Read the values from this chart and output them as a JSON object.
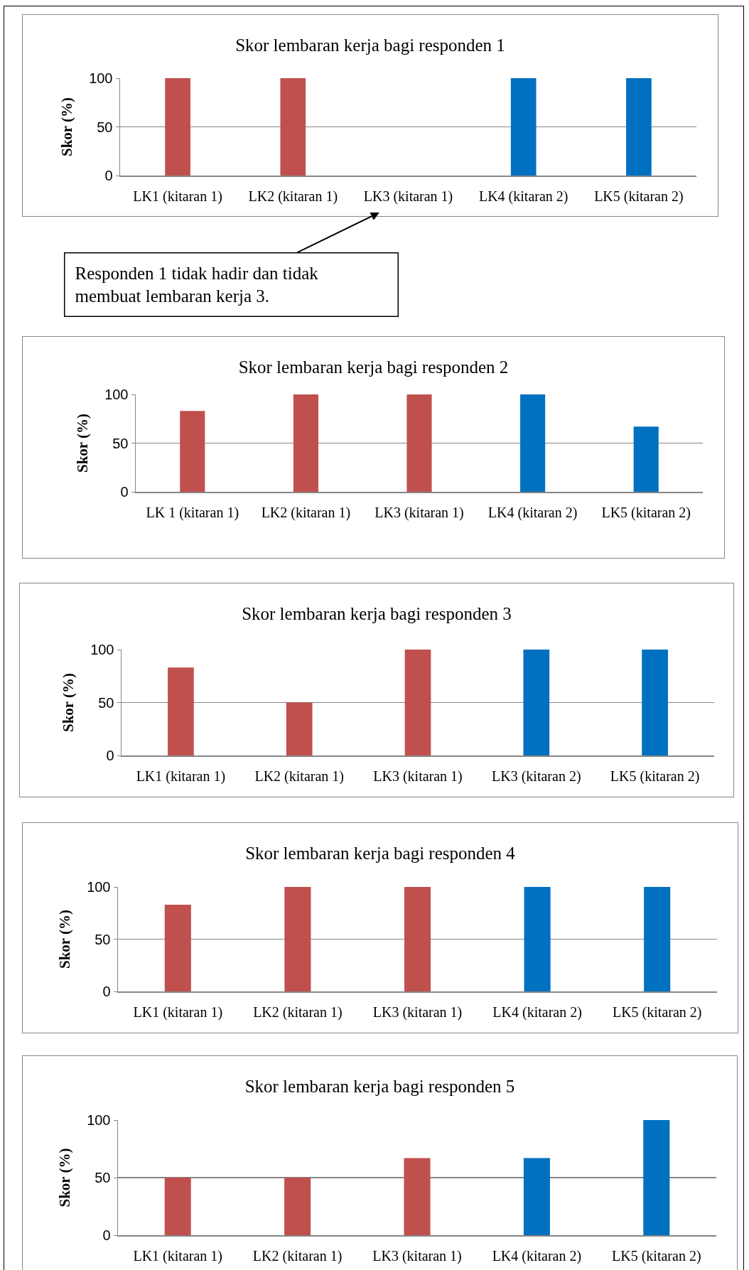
{
  "chart_data": [
    {
      "type": "bar",
      "title": "Skor lembaran kerja bagi responden 1",
      "ylabel": "Skor (%)",
      "categories": [
        "LK1 (kitaran 1)",
        "LK2 (kitaran 1)",
        "LK3 (kitaran 1)",
        "LK4 (kitaran 2)",
        "LK5 (kitaran 2)"
      ],
      "values": [
        100,
        100,
        null,
        100,
        100
      ],
      "colors": [
        "#c0504d",
        "#c0504d",
        "#c0504d",
        "#0070c0",
        "#0070c0"
      ],
      "ylim": [
        0,
        100
      ],
      "yticks": [
        0,
        50,
        100
      ],
      "grid": "y",
      "annotations": [
        "Responden 1 tidak hadir dan tidak\nmembuat lembaran kerja 3."
      ]
    },
    {
      "type": "bar",
      "title": "Skor lembaran kerja bagi responden 2",
      "ylabel": "Skor (%)",
      "categories": [
        "LK 1 (kitaran 1)",
        "LK2 (kitaran 1)",
        "LK3 (kitaran 1)",
        "LK4 (kitaran 2)",
        "LK5 (kitaran 2)"
      ],
      "values": [
        83,
        100,
        100,
        100,
        67
      ],
      "colors": [
        "#c0504d",
        "#c0504d",
        "#c0504d",
        "#0070c0",
        "#0070c0"
      ],
      "ylim": [
        0,
        100
      ],
      "yticks": [
        0,
        50,
        100
      ],
      "grid": "y"
    },
    {
      "type": "bar",
      "title": "Skor lembaran kerja bagi responden 3",
      "ylabel": "Skor (%)",
      "categories": [
        "LK1 (kitaran 1)",
        "LK2 (kitaran 1)",
        "LK3 (kitaran 1)",
        "LK3 (kitaran 2)",
        "LK5 (kitaran 2)"
      ],
      "values": [
        83,
        50,
        100,
        100,
        100
      ],
      "colors": [
        "#c0504d",
        "#c0504d",
        "#c0504d",
        "#0070c0",
        "#0070c0"
      ],
      "ylim": [
        0,
        100
      ],
      "yticks": [
        0,
        50,
        100
      ],
      "grid": "y"
    },
    {
      "type": "bar",
      "title": "Skor lembaran kerja bagi responden 4",
      "ylabel": "Skor (%)",
      "categories": [
        "LK1 (kitaran 1)",
        "LK2 (kitaran 1)",
        "LK3 (kitaran 1)",
        "LK4 (kitaran 2)",
        "LK5 (kitaran 2)"
      ],
      "values": [
        83,
        100,
        100,
        100,
        100
      ],
      "colors": [
        "#c0504d",
        "#c0504d",
        "#c0504d",
        "#0070c0",
        "#0070c0"
      ],
      "ylim": [
        0,
        100
      ],
      "yticks": [
        0,
        50,
        100
      ],
      "grid": "y"
    },
    {
      "type": "bar",
      "title": "Skor lembaran kerja bagi responden 5",
      "ylabel": "Skor (%)",
      "categories": [
        "LK1 (kitaran 1)",
        "LK2 (kitaran 1)",
        "LK3 (kitaran 1)",
        "LK4 (kitaran 2)",
        "LK5 (kitaran 2)"
      ],
      "values": [
        50,
        50,
        67,
        67,
        100
      ],
      "colors": [
        "#c0504d",
        "#c0504d",
        "#c0504d",
        "#0070c0",
        "#0070c0"
      ],
      "ylim": [
        0,
        100
      ],
      "yticks": [
        0,
        50,
        100
      ],
      "grid": "y"
    }
  ]
}
